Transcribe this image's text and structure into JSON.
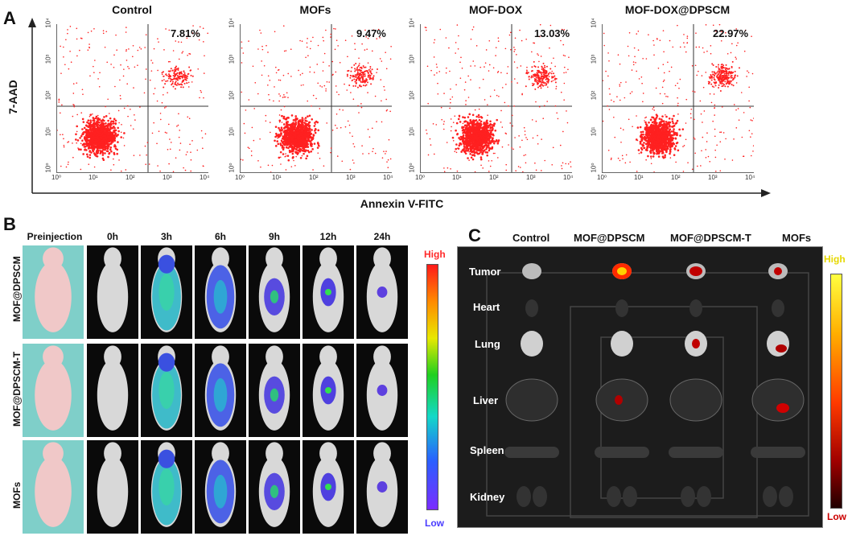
{
  "panel_a": {
    "letter": "A",
    "y_axis_label": "7-AAD",
    "x_axis_label": "Annexin V-FITC",
    "x_ticks": [
      "10⁰",
      "10¹",
      "10²",
      "10³",
      "10⁴"
    ],
    "y_ticks": [
      "10⁰",
      "10¹",
      "10²",
      "10³",
      "10⁴"
    ],
    "plots": [
      {
        "title": "Control",
        "percent": "7.81%"
      },
      {
        "title": "MOFs",
        "percent": "9.47%"
      },
      {
        "title": "MOF-DOX",
        "percent": "13.03%"
      },
      {
        "title": "MOF-DOX@DPSCM",
        "percent": "22.97%"
      }
    ]
  },
  "panel_b": {
    "letter": "B",
    "time_headers": [
      "Preinjection",
      "0h",
      "3h",
      "6h",
      "9h",
      "12h",
      "24h"
    ],
    "row_labels": [
      "MOF@DPSCM",
      "MOF@DPSCM-T",
      "MOFs"
    ],
    "scale_high": "High",
    "scale_low": "Low"
  },
  "panel_c": {
    "letter": "C",
    "columns": [
      "Control",
      "MOF@DPSCM",
      "MOF@DPSCM-T",
      "MOFs"
    ],
    "organs": [
      "Tumor",
      "Heart",
      "Lung",
      "Liver",
      "Spleen",
      "Kidney"
    ],
    "scale_high": "High",
    "scale_low": "Low"
  },
  "colors": {
    "dot_red": "#ff2020",
    "high_b": "#ff2a2a",
    "low_b": "#4a3cff",
    "high_c": "#e6d800",
    "low_c": "#cc0000"
  }
}
